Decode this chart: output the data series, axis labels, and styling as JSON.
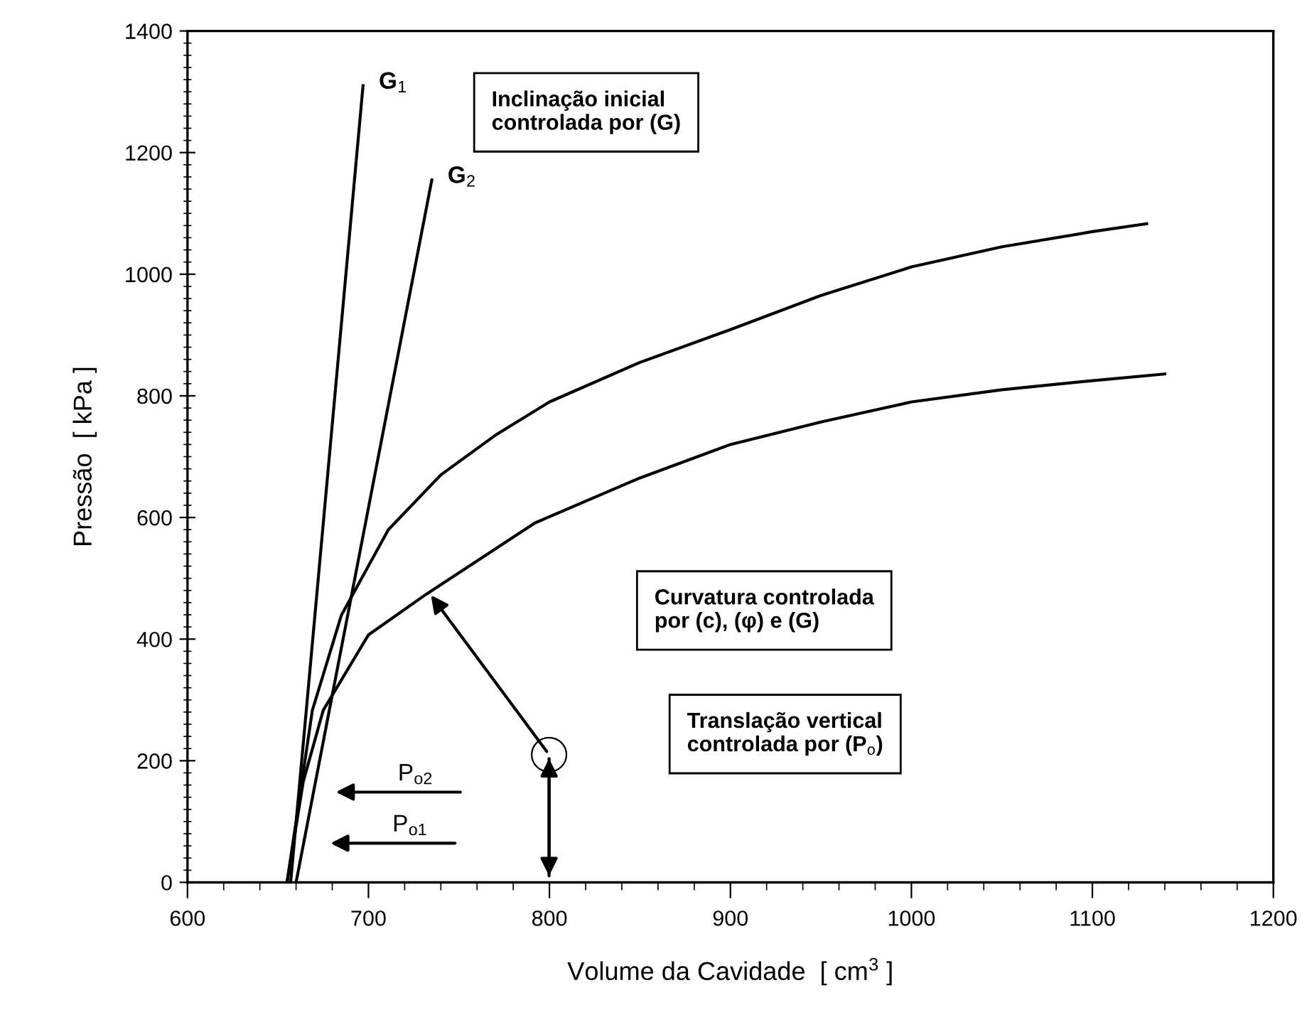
{
  "chart_data": {
    "type": "line",
    "xlabel": "Volume da Cavidade  [ cm$^{3}$ ]",
    "ylabel": "Pressão  [ kPa ]",
    "xlim": [
      600,
      1200
    ],
    "xticks": [
      600,
      700,
      800,
      900,
      1000,
      1100,
      1200
    ],
    "ylim": [
      0,
      1400
    ],
    "yticks": [
      0,
      200,
      400,
      600,
      800,
      1000,
      1200,
      1400
    ],
    "grid": false,
    "legend": false,
    "line_style": "solid",
    "series": [
      {
        "name": "G$_{1}$",
        "color": "#000000",
        "x": [
          657,
          697
        ],
        "values": [
          0,
          1310
        ]
      },
      {
        "name": "G$_{2}$",
        "color": "#000000",
        "x": [
          660,
          735
        ],
        "values": [
          0,
          1155
        ]
      },
      {
        "color": "#000000",
        "x": [
          655,
          660,
          669,
          685,
          711,
          740,
          770,
          800,
          850,
          900,
          950,
          1000,
          1050,
          1100,
          1130
        ],
        "values": [
          0,
          100,
          283,
          439,
          580,
          670,
          735,
          790,
          855,
          909,
          965,
          1012,
          1045,
          1070,
          1083
        ]
      },
      {
        "color": "#000000",
        "x": [
          655,
          664,
          675,
          700,
          732,
          792,
          850,
          900,
          950,
          1000,
          1050,
          1100,
          1140
        ],
        "values": [
          0,
          166,
          283,
          407,
          474,
          591,
          665,
          720,
          757,
          790,
          810,
          825,
          836
        ]
      }
    ],
    "annotations": [
      "Inclinação inicial\ncontrolada por (G)",
      "Curvatura controlada\npor (c), (φ) e (G)",
      "Translação vertical\ncontrolada por (P$_{o}$)",
      "P$_{o2}$",
      "P$_{o1}$"
    ]
  }
}
